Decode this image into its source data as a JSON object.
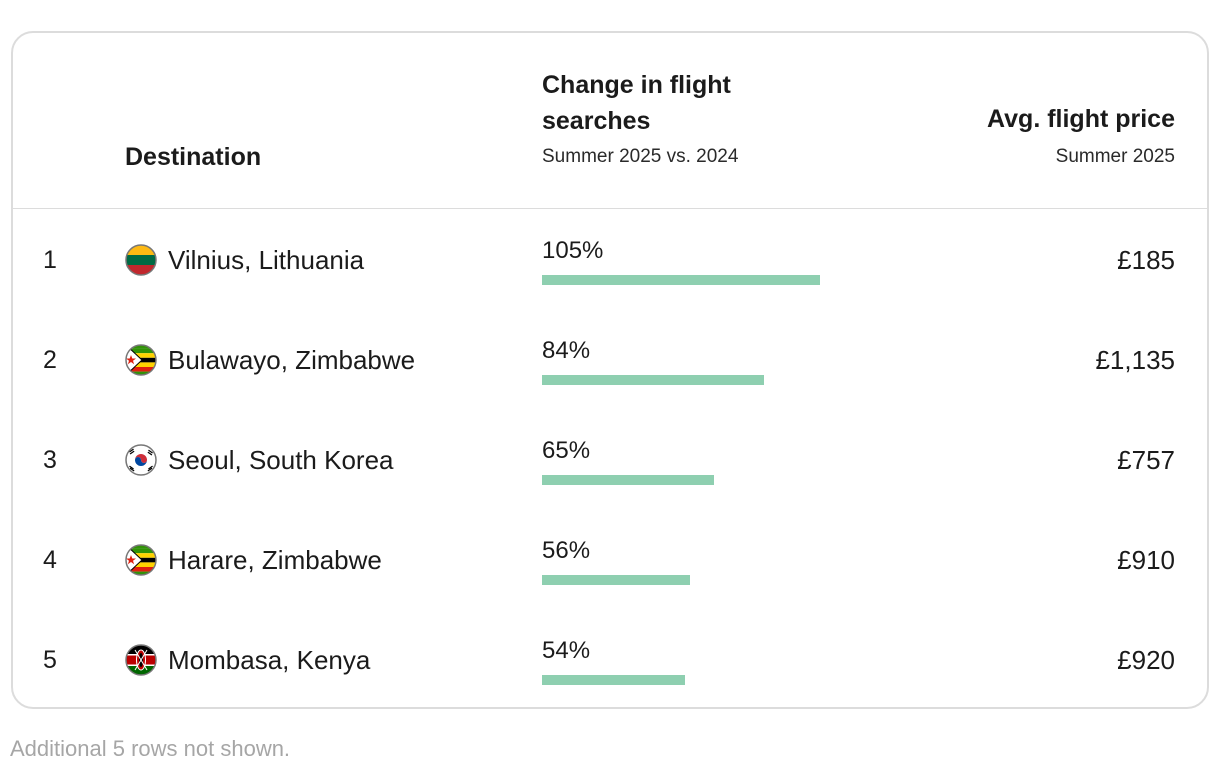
{
  "header": {
    "destination": "Destination",
    "change_title": "Change in flight searches",
    "change_subtitle": "Summer 2025 vs. 2024",
    "price_title": "Avg. flight price",
    "price_subtitle": "Summer 2025"
  },
  "rows": [
    {
      "rank": "1",
      "destination": "Vilnius, Lithuania",
      "flag_icon": "lithuania-flag-icon",
      "change_label": "105%",
      "price": "£185"
    },
    {
      "rank": "2",
      "destination": "Bulawayo, Zimbabwe",
      "flag_icon": "zimbabwe-flag-icon",
      "change_label": "84%",
      "price": "£1,135"
    },
    {
      "rank": "3",
      "destination": "Seoul, South Korea",
      "flag_icon": "south-korea-flag-icon",
      "change_label": "65%",
      "price": "£757"
    },
    {
      "rank": "4",
      "destination": "Harare, Zimbabwe",
      "flag_icon": "zimbabwe-flag-icon",
      "change_label": "56%",
      "price": "£910"
    },
    {
      "rank": "5",
      "destination": "Mombasa, Kenya",
      "flag_icon": "kenya-flag-icon",
      "change_label": "54%",
      "price": "£920"
    }
  ],
  "chart_data": {
    "type": "bar",
    "categories": [
      "Vilnius, Lithuania",
      "Bulawayo, Zimbabwe",
      "Seoul, South Korea",
      "Harare, Zimbabwe",
      "Mombasa, Kenya"
    ],
    "values": [
      105,
      84,
      65,
      56,
      54
    ],
    "prices": [
      "£185",
      "£1,135",
      "£757",
      "£910",
      "£920"
    ],
    "bar_color": "#8ecfb0"
  },
  "footnote": "Additional 5 rows not shown."
}
